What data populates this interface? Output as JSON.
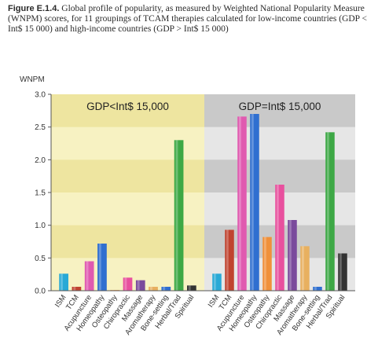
{
  "caption": {
    "label": "Figure E.1.4.",
    "text": "Global profile of popularity, as measured by Weighted National Popularity Measure (WNPM) scores, for 11 groupings of TCAM therapies calculated for low-income countries (GDP < Int$ 15 000) and high-income countries (GDP > Int$ 15 000)"
  },
  "chart_data": {
    "type": "bar",
    "ylabel": "WNPM",
    "ylim": [
      0,
      3.0
    ],
    "yticks": [
      "0.0",
      "0.5",
      "1.0",
      "1.5",
      "2.0",
      "2.5",
      "3.0"
    ],
    "grid": "alternating horizontal bands",
    "categories": [
      "ISM",
      "TCM",
      "Acupuncture",
      "Homeopathy",
      "Osteopathy",
      "Chiropractic",
      "Massage",
      "Aromatherapy",
      "Bone-setting",
      "Herbal/Trad",
      "Spiritual"
    ],
    "colors": [
      "#29a9d6",
      "#c0432f",
      "#e05ab0",
      "#2f6fd0",
      "#f0903a",
      "#e8509e",
      "#7a4a9c",
      "#e8b060",
      "#2f6fd0",
      "#3da845",
      "#333333"
    ],
    "groups": [
      {
        "name": "GDP<Int$ 15,000",
        "values": [
          0.26,
          0.06,
          0.45,
          0.72,
          0.01,
          0.2,
          0.16,
          0.06,
          0.06,
          2.3,
          0.08
        ]
      },
      {
        "name": "GDP=Int$ 15,000",
        "values": [
          0.26,
          0.93,
          2.66,
          2.7,
          0.82,
          1.62,
          1.08,
          0.68,
          0.06,
          2.42,
          0.57
        ]
      }
    ]
  }
}
